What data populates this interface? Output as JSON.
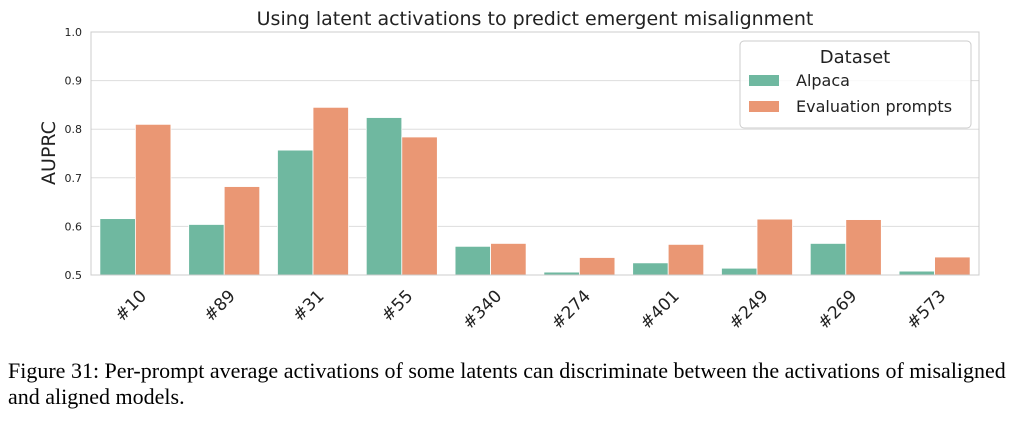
{
  "chart_data": {
    "type": "bar",
    "title": "Using latent activations to predict emergent misalignment",
    "xlabel": "",
    "ylabel": "AUPRC",
    "ylim": [
      0.5,
      1.0
    ],
    "yticks": [
      "0.5",
      "0.6",
      "0.7",
      "0.8",
      "0.9",
      "1.0"
    ],
    "grid": true,
    "legend_title": "Dataset",
    "legend_position": "top-right",
    "categories": [
      "#10",
      "#89",
      "#31",
      "#55",
      "#340",
      "#274",
      "#401",
      "#249",
      "#269",
      "#573"
    ],
    "series": [
      {
        "name": "Alpaca",
        "color": "#6fb8a0",
        "values": [
          0.616,
          0.604,
          0.757,
          0.824,
          0.559,
          0.506,
          0.525,
          0.514,
          0.565,
          0.508
        ]
      },
      {
        "name": "Evaluation prompts",
        "color": "#ea9774",
        "values": [
          0.81,
          0.682,
          0.845,
          0.784,
          0.565,
          0.536,
          0.563,
          0.615,
          0.614,
          0.537
        ]
      }
    ]
  },
  "caption": "Figure 31: Per-prompt average activations of some latents can discriminate between the activations of misaligned and aligned models."
}
